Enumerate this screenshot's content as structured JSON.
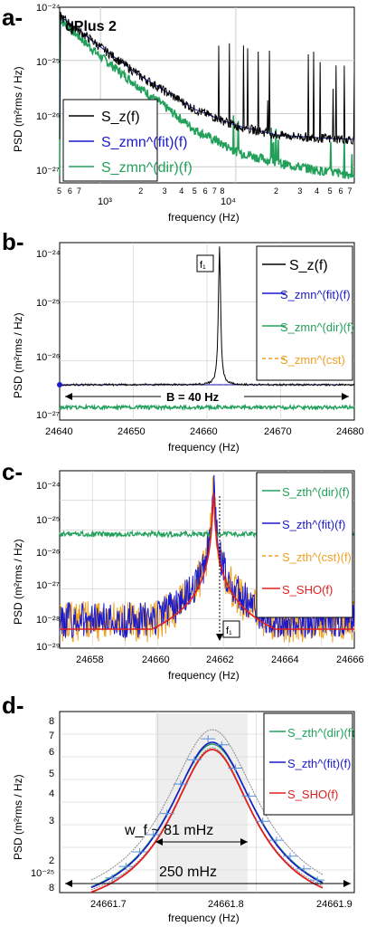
{
  "panels": [
    {
      "letter": "a-",
      "title": "qPlus 2"
    },
    {
      "letter": "b-"
    },
    {
      "letter": "c-"
    },
    {
      "letter": "d-"
    }
  ],
  "colors": {
    "black": "#000000",
    "blue": "#1a1acc",
    "green": "#22a05a",
    "orange": "#f0a020",
    "red": "#e02020",
    "gray": "#888888"
  },
  "chart_data": [
    {
      "type": "line",
      "panel": "a",
      "title": "qPlus 2",
      "xlabel": "frequency (Hz)",
      "ylabel": "PSD (m²rms / Hz)",
      "xscale": "log",
      "yscale": "log",
      "xlim": [
        500,
        75000
      ],
      "ylim": [
        5e-28,
        1e-24
      ],
      "xticks_major": [
        "10³",
        "10⁴"
      ],
      "xticks_minor": [
        "5",
        "6",
        "7",
        "2",
        "3",
        "4",
        "5",
        "6",
        "7",
        "8",
        "2",
        "3",
        "4",
        "5",
        "6",
        "7"
      ],
      "yticks": [
        "10⁻²⁴",
        "10⁻²⁵",
        "10⁻²⁶",
        "10⁻²⁷"
      ],
      "legend": [
        "S_z(f)",
        "S_zmn^(fit)(f)",
        "S_zmn^(dir)(f)"
      ],
      "legend_position": "bottom-left",
      "series": [
        {
          "name": "S_z(f)",
          "color": "#000000",
          "x": [
            500,
            1000,
            2000,
            5000,
            10000,
            20000,
            50000,
            75000
          ],
          "y": [
            7e-25,
            1.8e-25,
            5e-26,
            1.2e-26,
            6e-27,
            4e-27,
            3.4e-27,
            3.3e-27
          ]
        },
        {
          "name": "S_zmn^(fit)(f)",
          "color": "#1a1acc",
          "x": [
            500,
            1000,
            2000,
            5000,
            10000,
            20000,
            50000,
            75000
          ],
          "y": [
            7e-25,
            1.8e-25,
            5e-26,
            1.2e-26,
            6e-27,
            4e-27,
            3.4e-27,
            3.3e-27
          ]
        },
        {
          "name": "S_zmn^(dir)(f)",
          "color": "#22a05a",
          "x": [
            500,
            1000,
            2000,
            5000,
            10000,
            20000,
            50000,
            75000
          ],
          "y": [
            6e-25,
            1.2e-25,
            3e-26,
            5e-27,
            2e-27,
            1.2e-27,
            8e-28,
            7e-28
          ]
        }
      ]
    },
    {
      "type": "line",
      "panel": "b",
      "xlabel": "frequency (Hz)",
      "ylabel": "PSD (m²rms / Hz)",
      "xlim": [
        24640,
        24680
      ],
      "xticks": [
        "24640",
        "24650",
        "24660",
        "24670",
        "24680"
      ],
      "yticks": [
        "10⁻²⁴",
        "10⁻²⁵",
        "10⁻²⁶",
        "10⁻²⁷"
      ],
      "annotations": [
        "f₁",
        "B = 40 Hz"
      ],
      "legend": [
        "S_z(f)",
        "S_zmn^(fit)(f)",
        "S_zmn^(dir)(f)",
        "S_zmn^(cst)"
      ],
      "legend_position": "top-right",
      "peak_frequency": 24661.7
    },
    {
      "type": "line",
      "panel": "c",
      "xlabel": "frequency (Hz)",
      "ylabel": "PSD (m²rms / Hz)",
      "xlim": [
        24657,
        24666
      ],
      "xticks": [
        "24658",
        "24660",
        "24662",
        "24664",
        "24666"
      ],
      "yticks": [
        "10⁻²⁴",
        "10⁻²⁵",
        "10⁻²⁶",
        "10⁻²⁷",
        "10⁻²⁸",
        "10⁻²⁹"
      ],
      "annotations": [
        "f₁"
      ],
      "legend": [
        "S_zth^(dir)(f)",
        "S_zth^(fit)(f)",
        "S_zth^(cst)(f)",
        "S_SHO(f)"
      ],
      "legend_position": "top-right"
    },
    {
      "type": "line",
      "panel": "d",
      "xlabel": "frequency (Hz)",
      "ylabel": "PSD (m²rms / Hz)",
      "xlim": [
        24661.62,
        24661.9
      ],
      "xticks": [
        "24661.7",
        "24661.8",
        "24661.9"
      ],
      "yticks": [
        "8",
        "7",
        "6",
        "5",
        "4",
        "3",
        "2",
        "10⁻²⁵",
        "8"
      ],
      "annotations": [
        "w_f ~ 81 mHz",
        "250 mHz"
      ],
      "legend": [
        "S_zth^(dir)(f)",
        "S_zth^(fit)(f)",
        "S_SHO(f)"
      ],
      "legend_position": "top-right",
      "peak_frequency": 24661.765
    }
  ]
}
